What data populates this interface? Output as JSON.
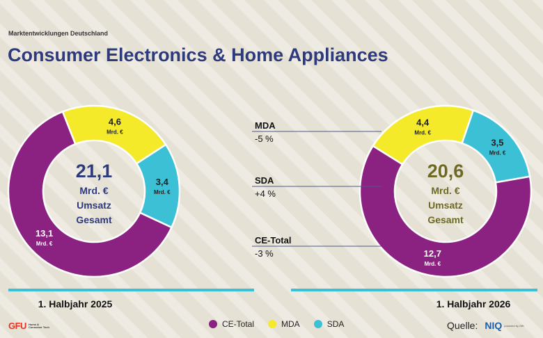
{
  "header": {
    "supertitle": "Marktentwicklungen Deutschland",
    "title": "Consumer Electronics & Home Appliances"
  },
  "colors": {
    "ce_total": "#8b2281",
    "mda": "#f4ea2a",
    "sda": "#3cc0d6",
    "title": "#2d3a7b",
    "total_2026": "#6e6a24",
    "divider": "#3cc0d6"
  },
  "chart_data": [
    {
      "type": "pie",
      "variant": "donut",
      "period": "1. Halbjahr 2025",
      "total_value": "21,1",
      "center_lines": [
        "Mrd. €",
        "Umsatz",
        "Gesamt"
      ],
      "slices": [
        {
          "name": "MDA",
          "value": 4.6,
          "label": "4,6",
          "unit": "Mrd. €"
        },
        {
          "name": "SDA",
          "value": 3.4,
          "label": "3,4",
          "unit": "Mrd. €"
        },
        {
          "name": "CE-Total",
          "value": 13.1,
          "label": "13,1",
          "unit": "Mrd. €"
        }
      ]
    },
    {
      "type": "pie",
      "variant": "donut",
      "period": "1. Halbjahr 2026",
      "total_value": "20,6",
      "center_lines": [
        "Mrd. €",
        "Umsatz",
        "Gesamt"
      ],
      "slices": [
        {
          "name": "MDA",
          "value": 4.4,
          "label": "4,4",
          "unit": "Mrd. €"
        },
        {
          "name": "SDA",
          "value": 3.5,
          "label": "3,5",
          "unit": "Mrd. €"
        },
        {
          "name": "CE-Total",
          "value": 12.7,
          "label": "12,7",
          "unit": "Mrd. €"
        }
      ]
    }
  ],
  "changes": [
    {
      "name": "MDA",
      "change": "-5 %"
    },
    {
      "name": "SDA",
      "change": "+4 %"
    },
    {
      "name": "CE-Total",
      "change": "-3 %"
    }
  ],
  "legend": {
    "position": "bottom-center",
    "items": [
      {
        "name": "CE-Total",
        "color": "#8b2281"
      },
      {
        "name": "MDA",
        "color": "#f4ea2a"
      },
      {
        "name": "SDA",
        "color": "#3cc0d6"
      }
    ]
  },
  "footer": {
    "logo_text": "GFU",
    "logo_subtext": "Home & Consumer Tech",
    "source_label": "Quelle:",
    "source_brand": "NIQ",
    "source_subtext": "powered by GfK"
  }
}
